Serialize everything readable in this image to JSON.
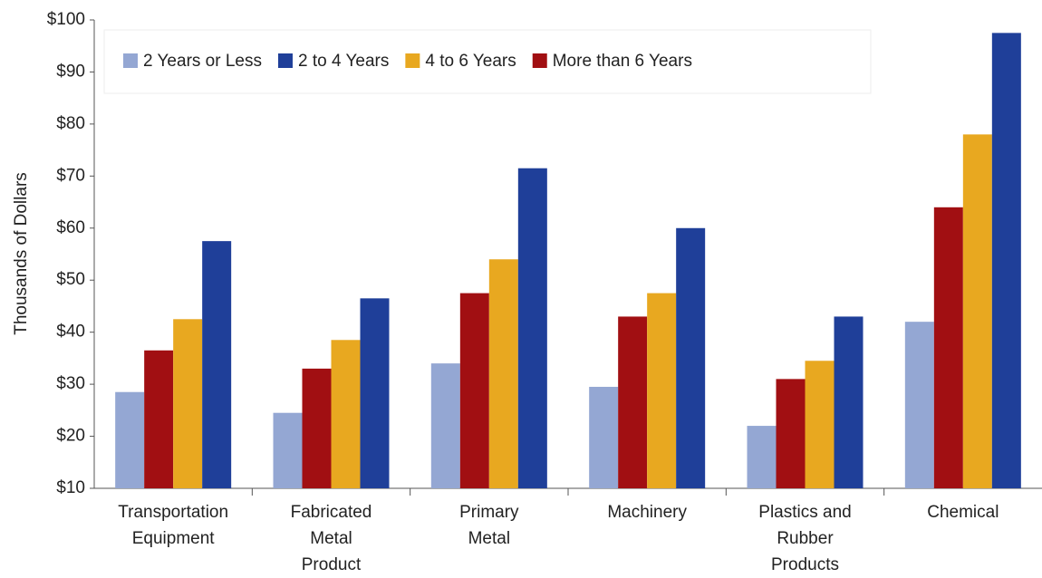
{
  "chart_data": {
    "type": "bar",
    "y_label": "Thousands of Dollars",
    "categories": [
      "Transportation\nEquipment",
      "Fabricated\nMetal\nProduct",
      "Primary\nMetal",
      "Machinery",
      "Plastics and\nRubber\nProducts",
      "Chemical"
    ],
    "series": [
      {
        "name": "2 Years or Less",
        "color": "#94a7d3",
        "values": [
          28.5,
          24.5,
          34,
          29.5,
          22,
          42
        ]
      },
      {
        "name": "2 to 4 Years",
        "color": "#1f3f99",
        "values": [
          57.5,
          46.5,
          71.5,
          60,
          43,
          97.5
        ]
      },
      {
        "name": "4 to 6 Years",
        "color": "#e8a820",
        "values": [
          42.5,
          38.5,
          54,
          47.5,
          34.5,
          78
        ]
      },
      {
        "name": "More than 6 Years",
        "color": "#a10f12",
        "values": [
          36.5,
          33,
          47.5,
          43,
          31,
          64
        ]
      }
    ],
    "bar_order": [
      0,
      3,
      2,
      1
    ],
    "ylim": [
      10,
      100
    ],
    "yticks": [
      {
        "value": 10,
        "label": "$10"
      },
      {
        "value": 20,
        "label": "$20"
      },
      {
        "value": 30,
        "label": "$30"
      },
      {
        "value": 40,
        "label": "$40"
      },
      {
        "value": 50,
        "label": "$50"
      },
      {
        "value": 60,
        "label": "$60"
      },
      {
        "value": 70,
        "label": "$70"
      },
      {
        "value": 80,
        "label": "$80"
      },
      {
        "value": 90,
        "label": "$90"
      },
      {
        "value": 100,
        "label": "$100"
      }
    ],
    "grid": false,
    "legend": "top-left"
  }
}
